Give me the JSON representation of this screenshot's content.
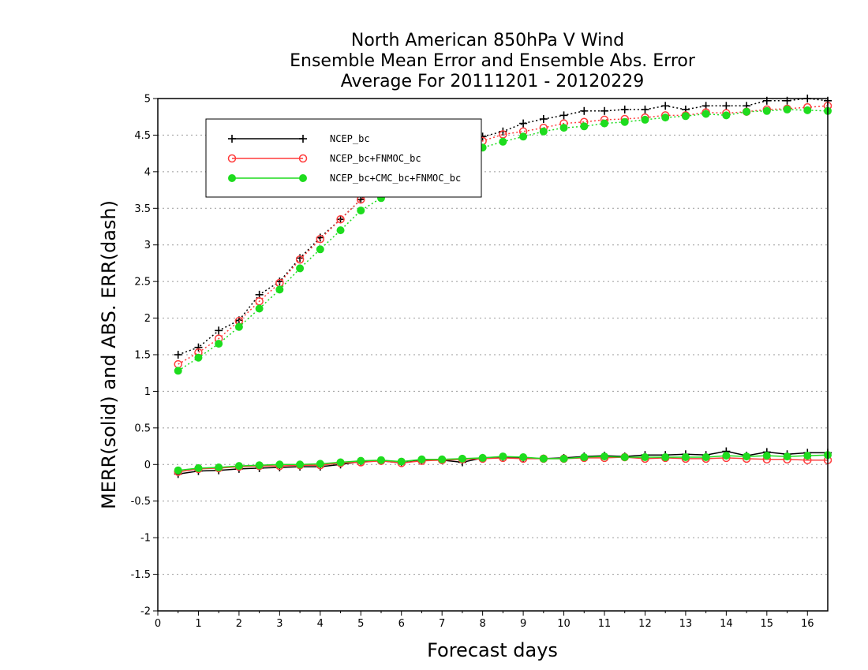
{
  "chart_data": {
    "type": "line",
    "title": [
      "North American 850hPa V Wind",
      "Ensemble Mean Error and Ensemble Abs. Error",
      "Average For 20111201 - 20120229"
    ],
    "xlabel": "Forecast days",
    "ylabel": "MERR(solid) and ABS. ERR(dash)",
    "xlim": [
      0,
      16.5
    ],
    "ylim": [
      -2,
      5
    ],
    "xticks": [
      0,
      1,
      2,
      3,
      4,
      5,
      6,
      7,
      8,
      9,
      10,
      11,
      12,
      13,
      14,
      15,
      16
    ],
    "yticks": [
      -2,
      -1.5,
      -1,
      -0.5,
      0,
      0.5,
      1,
      1.5,
      2,
      2.5,
      3,
      3.5,
      4,
      4.5,
      5
    ],
    "ytick_labels": [
      "-2",
      "-1.5",
      "-1",
      "-0.5",
      "0",
      "0.5",
      "1",
      "1.5",
      "2",
      "2.5",
      "3",
      "3.5",
      "4",
      "4.5",
      "5"
    ],
    "grid": "horizontal dotted",
    "legend_position": "top-left",
    "x": [
      0.5,
      1,
      1.5,
      2,
      2.5,
      3,
      3.5,
      4,
      4.5,
      5,
      5.5,
      6,
      6.5,
      7,
      7.5,
      8,
      8.5,
      9,
      9.5,
      10,
      10.5,
      11,
      11.5,
      12,
      12.5,
      13,
      13.5,
      14,
      14.5,
      15,
      15.5,
      16,
      16.5
    ],
    "series": [
      {
        "name": "NCEP_bc",
        "color": "#000000",
        "marker": "plus",
        "abs_err": [
          1.5,
          1.6,
          1.83,
          1.97,
          2.32,
          2.5,
          2.82,
          3.1,
          3.35,
          3.62,
          3.85,
          4.05,
          4.2,
          4.32,
          4.42,
          4.48,
          4.55,
          4.66,
          4.72,
          4.77,
          4.83,
          4.83,
          4.85,
          4.85,
          4.9,
          4.85,
          4.9,
          4.9,
          4.9,
          4.97,
          4.97,
          5.0,
          4.97
        ],
        "mean_err": [
          -0.13,
          -0.09,
          -0.08,
          -0.06,
          -0.05,
          -0.04,
          -0.03,
          -0.03,
          0.0,
          0.04,
          0.05,
          0.02,
          0.06,
          0.06,
          0.03,
          0.09,
          0.1,
          0.09,
          0.08,
          0.09,
          0.11,
          0.12,
          0.11,
          0.13,
          0.13,
          0.14,
          0.13,
          0.18,
          0.12,
          0.17,
          0.14,
          0.16,
          0.16
        ]
      },
      {
        "name": "NCEP_bc+FNMOC_bc",
        "color": "#ff3c3c",
        "marker": "open-circle",
        "abs_err": [
          1.37,
          1.53,
          1.72,
          1.96,
          2.23,
          2.48,
          2.8,
          3.08,
          3.35,
          3.62,
          3.82,
          4.0,
          4.13,
          4.25,
          4.33,
          4.42,
          4.51,
          4.55,
          4.6,
          4.66,
          4.68,
          4.71,
          4.72,
          4.74,
          4.77,
          4.77,
          4.81,
          4.8,
          4.82,
          4.85,
          4.86,
          4.88,
          4.9
        ],
        "mean_err": [
          -0.1,
          -0.06,
          -0.05,
          -0.03,
          -0.02,
          -0.02,
          -0.01,
          -0.01,
          0.02,
          0.03,
          0.05,
          0.02,
          0.05,
          0.06,
          0.07,
          0.08,
          0.09,
          0.08,
          0.08,
          0.08,
          0.09,
          0.09,
          0.1,
          0.08,
          0.09,
          0.08,
          0.08,
          0.09,
          0.08,
          0.07,
          0.07,
          0.06,
          0.06
        ]
      },
      {
        "name": "NCEP_bc+CMC_bc+FNMOC_bc",
        "color": "#1edc1e",
        "marker": "filled-circle",
        "abs_err": [
          1.28,
          1.46,
          1.65,
          1.88,
          2.13,
          2.39,
          2.68,
          2.94,
          3.2,
          3.47,
          3.64,
          3.82,
          3.98,
          4.12,
          4.25,
          4.33,
          4.41,
          4.48,
          4.55,
          4.6,
          4.62,
          4.66,
          4.68,
          4.71,
          4.74,
          4.76,
          4.79,
          4.77,
          4.82,
          4.83,
          4.85,
          4.84,
          4.83
        ],
        "mean_err": [
          -0.08,
          -0.05,
          -0.04,
          -0.02,
          -0.01,
          0.0,
          0.0,
          0.01,
          0.03,
          0.05,
          0.06,
          0.04,
          0.07,
          0.07,
          0.08,
          0.09,
          0.11,
          0.1,
          0.08,
          0.08,
          0.1,
          0.11,
          0.1,
          0.1,
          0.1,
          0.1,
          0.1,
          0.12,
          0.11,
          0.12,
          0.11,
          0.12,
          0.13
        ]
      }
    ]
  }
}
